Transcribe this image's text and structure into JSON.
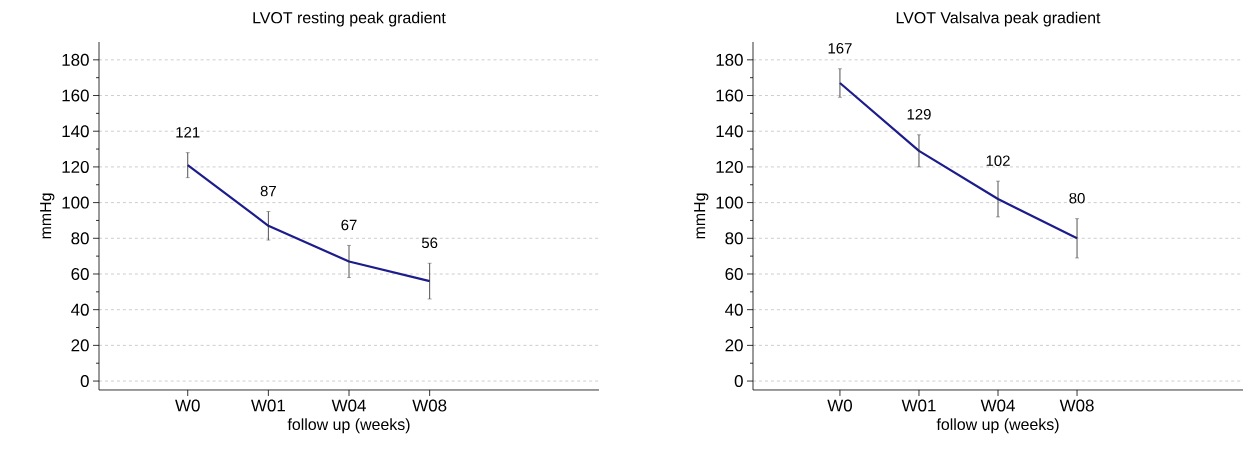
{
  "chart_data": [
    {
      "type": "line",
      "title": "LVOT resting peak gradient",
      "xlabel": "follow up (weeks)",
      "ylabel": "mmHg",
      "categories": [
        "W0",
        "W01",
        "W04",
        "W08"
      ],
      "series": [
        {
          "color": "#1c1c8c",
          "values": [
            121,
            87,
            67,
            56
          ],
          "errors": [
            7,
            8,
            9,
            10
          ]
        }
      ],
      "ylim": [
        -5,
        190
      ],
      "yticks": [
        0,
        20,
        40,
        60,
        80,
        100,
        120,
        140,
        160,
        180
      ],
      "grid": "y",
      "data_labels": true,
      "marker": "none",
      "line_style": "solid"
    },
    {
      "type": "line",
      "title": "LVOT Valsalva peak gradient",
      "xlabel": "follow up (weeks)",
      "ylabel": "mmHg",
      "categories": [
        "W0",
        "W01",
        "W04",
        "W08"
      ],
      "series": [
        {
          "color": "#1c1c8c",
          "values": [
            167,
            129,
            102,
            80
          ],
          "errors": [
            8,
            9,
            10,
            11
          ]
        }
      ],
      "ylim": [
        -5,
        190
      ],
      "yticks": [
        0,
        20,
        40,
        60,
        80,
        100,
        120,
        140,
        160,
        180
      ],
      "grid": "y",
      "data_labels": true,
      "marker": "none",
      "line_style": "solid"
    }
  ]
}
